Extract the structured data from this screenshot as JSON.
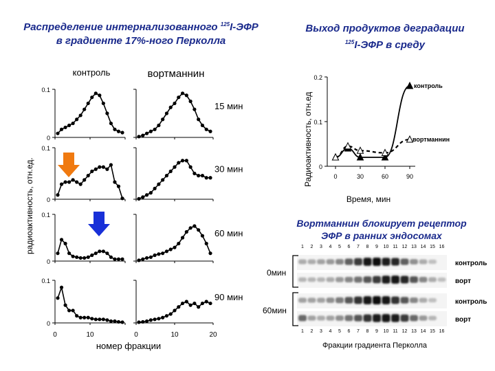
{
  "left_title": {
    "line1a": "Распределение интернализованного ",
    "sup": "125",
    "line1b": "I-ЭФР",
    "line2": "в градиенте 17%-ного Перколла"
  },
  "right_title": {
    "line1": "Выход продуктов деградации",
    "sup": "125",
    "line2b": "I-ЭФР в среду"
  },
  "blot_title": {
    "line1": "Вортманнин блокирует рецептор",
    "line2": "ЭФР в ранних эндосомах"
  },
  "panels": {
    "col_labels": [
      "контроль",
      "вортманнин"
    ],
    "ylabel": "радиоактивность, отн.ед.",
    "xlabel": "номер фракции",
    "x_ticks": [
      "0",
      "10",
      "0",
      "10",
      "20"
    ],
    "y_zero": "0",
    "y_tick": "0.1",
    "times": [
      "15  мин",
      "30 мин",
      "60 мин",
      "90 мин"
    ]
  },
  "chart_data": [
    {
      "type": "line",
      "title": "Распределение интернализованного 125I-ЭФР в градиенте 17%-ного Перколла",
      "xlabel": "номер фракции",
      "ylabel": "радиоактивность, отн.ед.",
      "columns": [
        "контроль",
        "вортманнин"
      ],
      "rows": [
        "15  мин",
        "30 мин",
        "60 мин",
        "90 мин"
      ],
      "x_control": [
        1,
        2,
        3,
        4,
        5,
        6,
        7,
        8,
        9,
        10,
        11,
        12,
        13,
        14,
        15,
        16,
        17,
        18
      ],
      "x_wortmannin": [
        1,
        2,
        3,
        4,
        5,
        6,
        7,
        8,
        9,
        10,
        11,
        12,
        13,
        14,
        15,
        16,
        17,
        18,
        19
      ],
      "ylim": [
        0,
        0.12
      ],
      "series": [
        {
          "name": "контроль 15 мин",
          "values": [
            0.01,
            0.02,
            0.025,
            0.03,
            0.035,
            0.045,
            0.055,
            0.07,
            0.085,
            0.1,
            0.11,
            0.105,
            0.085,
            0.06,
            0.035,
            0.02,
            0.015,
            0.012
          ]
        },
        {
          "name": "вортманнин 15 мин",
          "values": [
            0.002,
            0.005,
            0.01,
            0.015,
            0.02,
            0.03,
            0.045,
            0.06,
            0.075,
            0.085,
            0.1,
            0.11,
            0.105,
            0.09,
            0.07,
            0.045,
            0.03,
            0.02,
            0.015
          ]
        },
        {
          "name": "контроль 30 мин",
          "values": [
            0.01,
            0.035,
            0.04,
            0.04,
            0.045,
            0.04,
            0.035,
            0.045,
            0.055,
            0.065,
            0.07,
            0.075,
            0.075,
            0.07,
            0.08,
            0.04,
            0.03,
            0.002
          ]
        },
        {
          "name": "вортманнин 30 мин",
          "values": [
            0.001,
            0.005,
            0.01,
            0.015,
            0.025,
            0.035,
            0.045,
            0.055,
            0.065,
            0.075,
            0.085,
            0.09,
            0.09,
            0.075,
            0.06,
            0.055,
            0.055,
            0.05,
            0.05
          ]
        },
        {
          "name": "контроль 60 мин",
          "values": [
            0.02,
            0.055,
            0.045,
            0.02,
            0.012,
            0.01,
            0.008,
            0.008,
            0.01,
            0.015,
            0.02,
            0.025,
            0.025,
            0.02,
            0.01,
            0.005,
            0.005,
            0.005
          ]
        },
        {
          "name": "вортманнин 60 мин",
          "values": [
            0.002,
            0.005,
            0.008,
            0.01,
            0.015,
            0.018,
            0.02,
            0.025,
            0.03,
            0.035,
            0.045,
            0.06,
            0.075,
            0.085,
            0.09,
            0.08,
            0.065,
            0.045,
            0.02
          ]
        },
        {
          "name": "контроль 90 мин",
          "values": [
            0.07,
            0.1,
            0.05,
            0.035,
            0.035,
            0.02,
            0.015,
            0.015,
            0.015,
            0.012,
            0.01,
            0.01,
            0.01,
            0.008,
            0.005,
            0.005,
            0.003,
            0.002
          ]
        },
        {
          "name": "вортманнин 90 мин",
          "values": [
            0.002,
            0.003,
            0.005,
            0.008,
            0.01,
            0.012,
            0.015,
            0.02,
            0.025,
            0.035,
            0.045,
            0.055,
            0.06,
            0.05,
            0.055,
            0.045,
            0.055,
            0.06,
            0.055
          ]
        }
      ]
    },
    {
      "type": "line",
      "title": "Выход продуктов деградации 125I-ЭФР в среду",
      "xlabel": "Время, мин",
      "ylabel": "Радиоактивность, отн.ед",
      "x_ticks": [
        "0",
        "30",
        "60",
        "90"
      ],
      "y_ticks": [
        "0",
        "0.1",
        "0.2"
      ],
      "xlim": [
        -3,
        100
      ],
      "ylim": [
        0,
        0.2
      ],
      "series": [
        {
          "name": "контроль",
          "x": [
            0,
            15,
            30,
            60,
            90
          ],
          "values": [
            0.02,
            0.04,
            0.02,
            0.02,
            0.18
          ]
        },
        {
          "name": "вортманнин",
          "x": [
            0,
            15,
            30,
            60,
            90
          ],
          "values": [
            0.02,
            0.045,
            0.035,
            0.03,
            0.06
          ]
        }
      ]
    }
  ],
  "blot": {
    "lane_numbers": [
      "1",
      "2",
      "3",
      "4",
      "5",
      "6",
      "7",
      "8",
      "9",
      "10",
      "11",
      "12",
      "13",
      "14",
      "15",
      "16"
    ],
    "time_labels": [
      "0мин",
      "60мин"
    ],
    "row_labels": [
      "контроль",
      "ворт",
      "контроль",
      "ворт"
    ],
    "xlabel": "Фракции градиента Перколла"
  },
  "colors": {
    "title": "#1a2a8c",
    "orange_arrow": "#f07a10",
    "blue_arrow": "#1830d8"
  }
}
